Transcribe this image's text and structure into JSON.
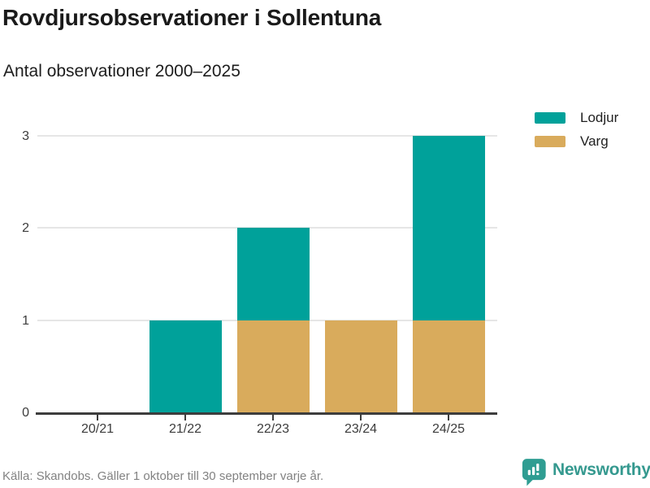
{
  "header": {
    "title": "Rovdjursobservationer i Sollentuna",
    "subtitle": "Antal observationer 2000–2025"
  },
  "chart_data": {
    "type": "bar",
    "stacked": true,
    "categories": [
      "20/21",
      "21/22",
      "22/23",
      "23/24",
      "24/25"
    ],
    "series": [
      {
        "name": "Lodjur",
        "color": "#00a19a",
        "values": [
          0,
          1,
          1,
          0,
          2
        ]
      },
      {
        "name": "Varg",
        "color": "#d9ab5c",
        "values": [
          0,
          0,
          1,
          1,
          1
        ]
      }
    ],
    "stack_order_bottom_to_top": [
      "Varg",
      "Lodjur"
    ],
    "title": "Rovdjursobservationer i Sollentuna",
    "subtitle": "Antal observationer 2000–2025",
    "xlabel": "",
    "ylabel": "",
    "yticks": [
      0,
      1,
      2,
      3
    ],
    "ylim": [
      0,
      3
    ],
    "grid": true,
    "legend_position": "top-right"
  },
  "footer": {
    "source": "Källa: Skandobs. Gäller 1 oktober till 30 september varje år.",
    "brand": "Newsworthy"
  },
  "colors": {
    "lodjur": "#00a19a",
    "varg": "#d9ab5c",
    "brand_teal": "#35998f",
    "brand_icon": "#2f9d92",
    "axis_line": "#3d3d3d",
    "gridline": "#e6e6e6"
  },
  "icons": {
    "brand_icon": "bar-chart-speech-bubble-icon"
  }
}
